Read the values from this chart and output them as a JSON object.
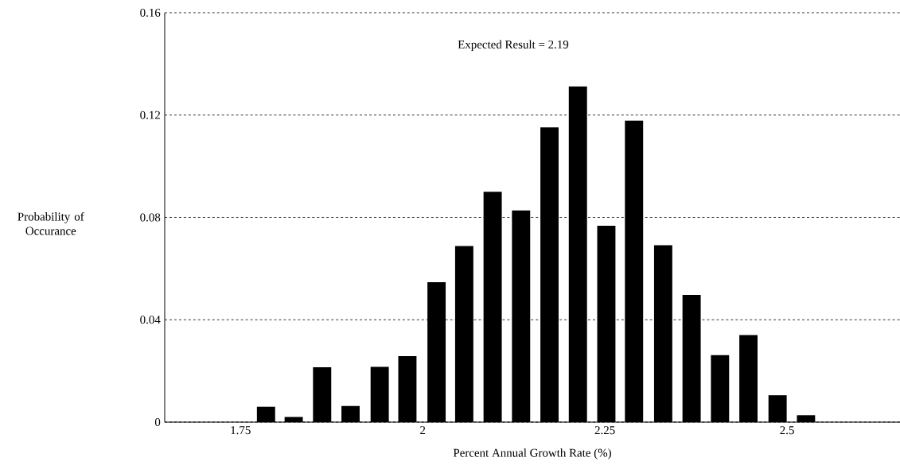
{
  "chart_data": {
    "type": "bar",
    "xlabel": "Percent Annual Growth Rate (%)",
    "ylabel": "Probability of Occurance",
    "annotations": [
      "Expected Result = 2.19"
    ],
    "x": [
      1.785,
      1.823,
      1.862,
      1.901,
      1.941,
      1.979,
      2.019,
      2.057,
      2.096,
      2.135,
      2.174,
      2.213,
      2.252,
      2.29,
      2.33,
      2.369,
      2.408,
      2.447,
      2.487,
      2.526
    ],
    "values": [
      0.006,
      0.002,
      0.0214,
      0.0063,
      0.0216,
      0.0258,
      0.0547,
      0.0688,
      0.09,
      0.0827,
      0.1152,
      0.1312,
      0.0767,
      0.1178,
      0.0691,
      0.0497,
      0.0262,
      0.034,
      0.0105,
      0.0027
    ],
    "color": "#000000",
    "xlim": [
      1.646,
      2.655
    ],
    "xticks": [
      1.75,
      2,
      2.25,
      2.5
    ],
    "ylim": [
      0,
      0.16
    ],
    "yticks": [
      0,
      0.04,
      0.08,
      0.12,
      0.16
    ],
    "grid": "y"
  }
}
